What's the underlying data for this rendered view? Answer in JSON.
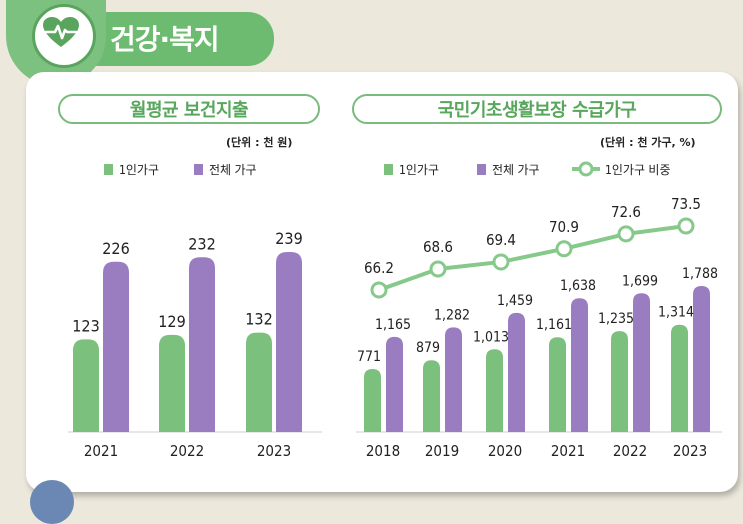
{
  "section": {
    "title": "건강·복지",
    "icon": "heart-pulse-icon"
  },
  "colors": {
    "green": "#7cc07e",
    "purple": "#9a7cc0",
    "line": "#86c98a"
  },
  "chart_data": [
    {
      "type": "bar",
      "title": "월평균 보건지출",
      "unit": "(단위 : 천 원)",
      "categories": [
        "2021",
        "2022",
        "2023"
      ],
      "series": [
        {
          "name": "1인가구",
          "values": [
            123,
            129,
            132
          ]
        },
        {
          "name": "전체 가구",
          "values": [
            226,
            232,
            239
          ]
        }
      ],
      "legend_position": "top-left"
    },
    {
      "type": "bar",
      "title": "국민기초생활보장 수급가구",
      "unit": "(단위 : 천 가구, %)",
      "categories": [
        "2018",
        "2019",
        "2020",
        "2021",
        "2022",
        "2023"
      ],
      "series": [
        {
          "name": "1인가구",
          "values": [
            771,
            879,
            1013,
            1161,
            1235,
            1314
          ],
          "labels": [
            "771",
            "879",
            "1,013",
            "1,161",
            "1,235",
            "1,314"
          ]
        },
        {
          "name": "전체 가구",
          "values": [
            1165,
            1282,
            1459,
            1638,
            1699,
            1788
          ],
          "labels": [
            "1,165",
            "1,282",
            "1,459",
            "1,638",
            "1,699",
            "1,788"
          ]
        },
        {
          "name": "1인가구 비중",
          "type": "line",
          "values": [
            66.2,
            68.6,
            69.4,
            70.9,
            72.6,
            73.5
          ],
          "labels": [
            "66.2",
            "68.6",
            "69.4",
            "70.9",
            "72.6",
            "73.5"
          ]
        }
      ],
      "legend_position": "top-left"
    }
  ]
}
